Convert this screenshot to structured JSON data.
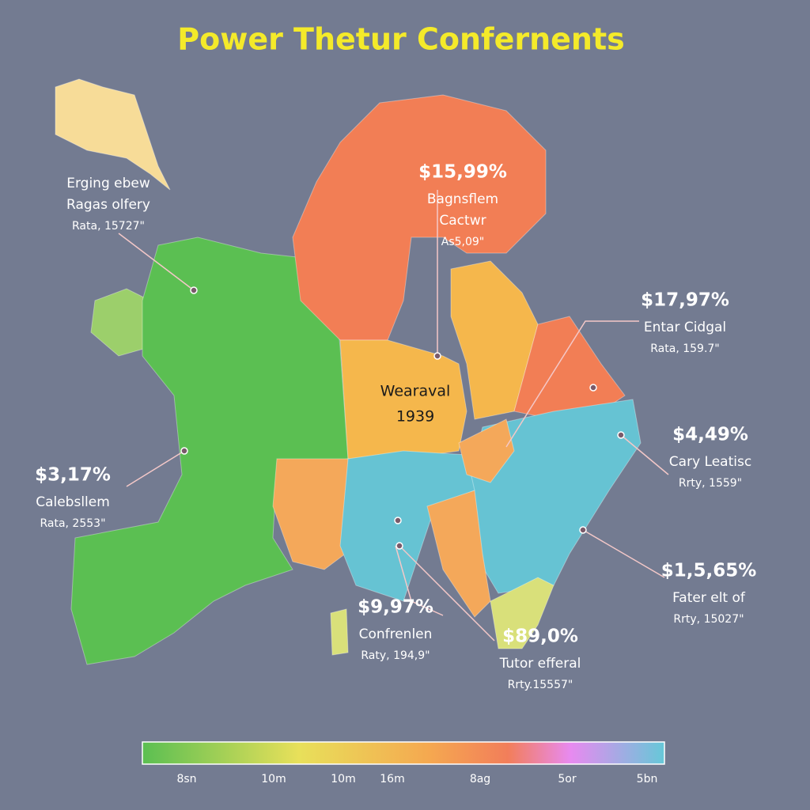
{
  "title": "Power Thetur Confernents",
  "callouts": [
    {
      "lines": [
        "Erging ebew",
        "Ragas olfery",
        "Rata, 15727\""
      ]
    },
    {
      "value": "$15,99%",
      "lines": [
        "Bagnsflem",
        "Cactwr",
        "As5,09\""
      ]
    },
    {
      "value": "$17,97%",
      "lines": [
        "Entar Cidgal",
        "Rata, 159.7\""
      ]
    },
    {
      "value": "$4,49%",
      "lines": [
        "Cary Leatisc",
        "Rrty, 1559\""
      ]
    },
    {
      "value": "$3,17%",
      "lines": [
        "Calebsllem",
        "Rata, 2553\""
      ]
    },
    {
      "value": "$1,5,65%",
      "lines": [
        "Fater elt of",
        "Rrty, 15027\""
      ]
    },
    {
      "value": "$9,97%",
      "lines": [
        "Confrenlen",
        "Raty, 194,9\""
      ]
    },
    {
      "value": "$89,0%",
      "lines": [
        "Tutor efferal",
        "Rrty.15557\""
      ]
    }
  ],
  "center_label": {
    "lines": [
      "Wearaval",
      "1939"
    ]
  },
  "legend": {
    "ticks": [
      "8sn",
      "10m",
      "10m",
      "16m",
      "8ag",
      "5or",
      "5bn"
    ]
  }
}
